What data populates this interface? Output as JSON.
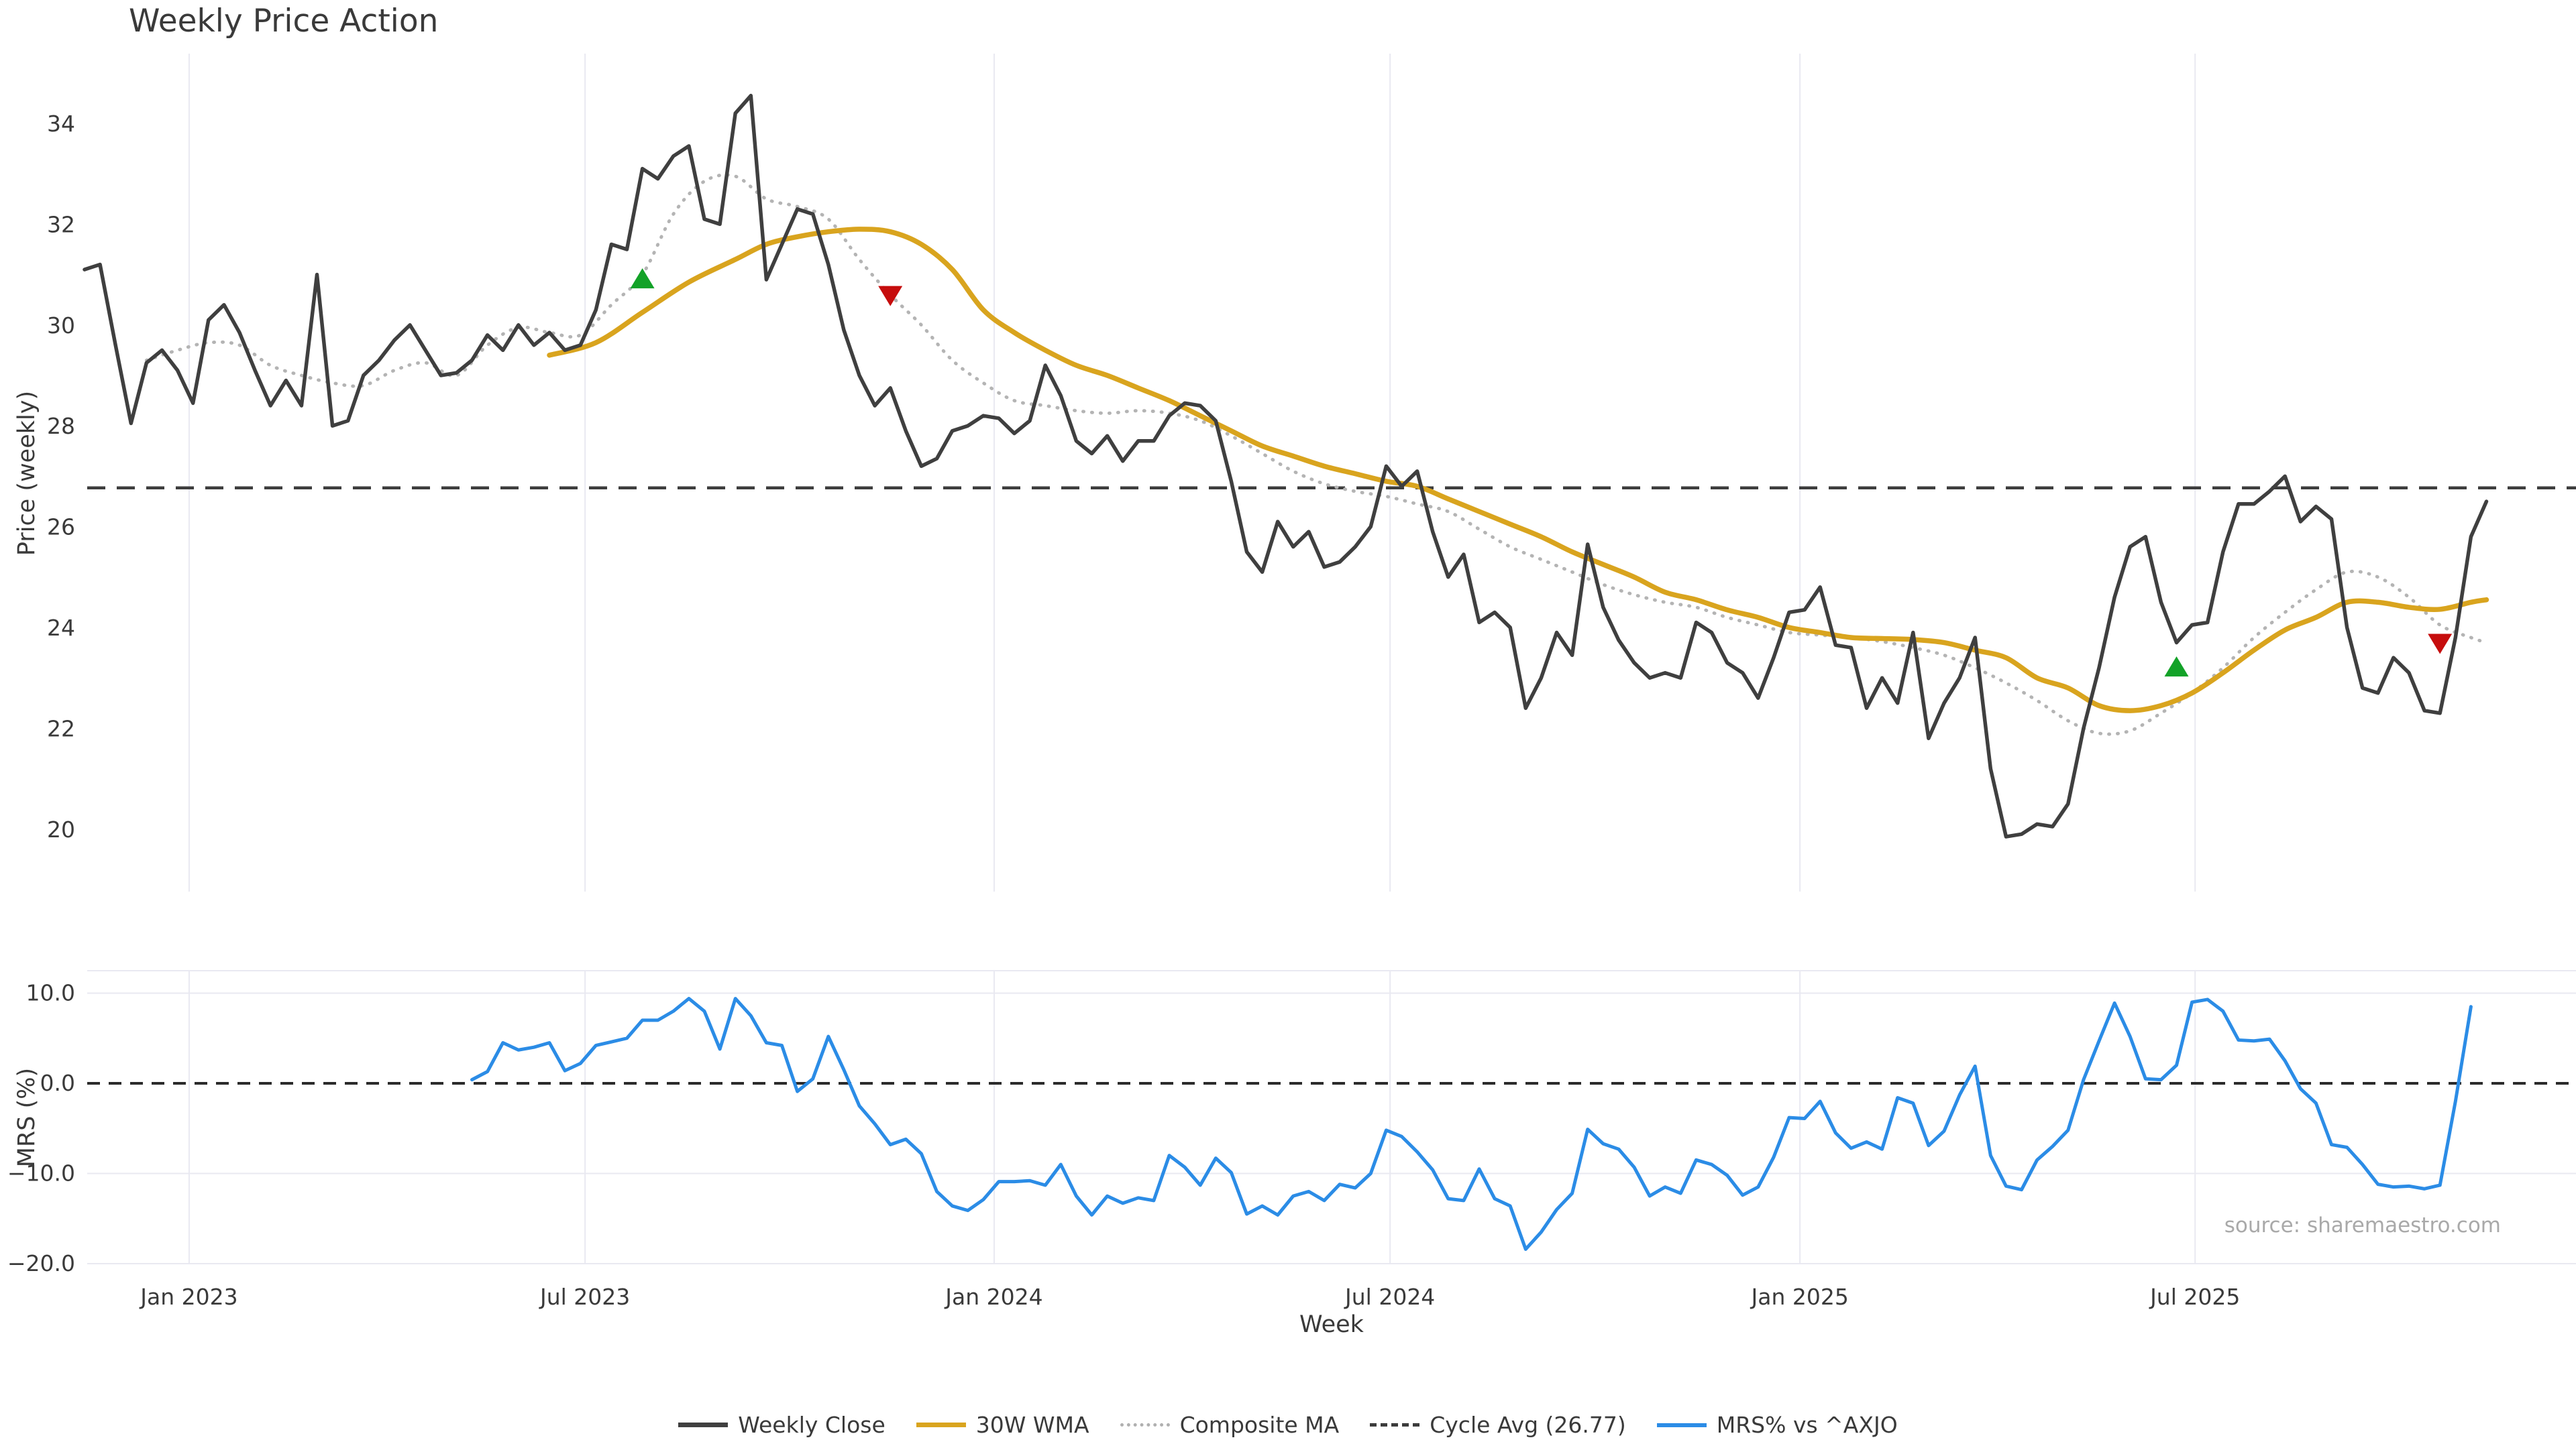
{
  "chart_data": {
    "type": "line",
    "title": "Weekly Price Action",
    "source": "source: sharemaestro.com",
    "xlabel": "Week",
    "x_unit": "week_index_from_2022-11",
    "xticks": [
      {
        "label": "Jan 2023",
        "week": 6.75
      },
      {
        "label": "Jul 2023",
        "week": 32.3
      },
      {
        "label": "Jan 2024",
        "week": 58.7
      },
      {
        "label": "Jul 2024",
        "week": 84.25
      },
      {
        "label": "Jan 2025",
        "week": 110.7
      },
      {
        "label": "Jul 2025",
        "week": 136.2
      }
    ],
    "panels": [
      {
        "name": "price",
        "ylabel": "Price (weekly)",
        "ylim": [
          18.8,
          35.4
        ],
        "grid": "vertical-only",
        "yticks": [
          {
            "v": 34,
            "label": "34"
          },
          {
            "v": 32,
            "label": "32"
          },
          {
            "v": 30,
            "label": "30"
          },
          {
            "v": 28,
            "label": "28"
          },
          {
            "v": 26,
            "label": "26"
          },
          {
            "v": 24,
            "label": "24"
          },
          {
            "v": 22,
            "label": "22"
          },
          {
            "v": 20,
            "label": "20"
          }
        ],
        "cycle_avg": 26.77,
        "weekly_close": {
          "start_week": 0,
          "values": [
            31.1,
            31.2,
            29.6,
            28.05,
            29.25,
            29.5,
            29.1,
            28.45,
            30.1,
            30.4,
            29.85,
            29.1,
            28.4,
            28.9,
            28.4,
            31.0,
            28.0,
            28.1,
            29.0,
            29.3,
            29.7,
            30.0,
            29.5,
            29.0,
            29.05,
            29.3,
            29.8,
            29.5,
            30.0,
            29.6,
            29.85,
            29.5,
            29.6,
            30.3,
            31.6,
            31.5,
            33.1,
            32.9,
            33.35,
            33.55,
            32.1,
            32.0,
            34.2,
            34.55,
            30.9,
            31.6,
            32.3,
            32.2,
            31.2,
            29.9,
            29.0,
            28.4,
            28.75,
            27.9,
            27.2,
            27.35,
            27.9,
            28.0,
            28.2,
            28.15,
            27.85,
            28.1,
            29.2,
            28.6,
            27.7,
            27.45,
            27.8,
            27.3,
            27.7,
            27.7,
            28.2,
            28.45,
            28.4,
            28.1,
            26.9,
            25.5,
            25.1,
            26.1,
            25.6,
            25.9,
            25.2,
            25.3,
            25.6,
            26.0,
            27.2,
            26.8,
            27.1,
            25.9,
            25.0,
            25.45,
            24.1,
            24.3,
            24.0,
            22.4,
            23.0,
            23.9,
            23.45,
            25.65,
            24.4,
            23.75,
            23.3,
            23.0,
            23.1,
            23.0,
            24.1,
            23.9,
            23.3,
            23.1,
            22.6,
            23.4,
            24.3,
            24.35,
            24.8,
            23.65,
            23.6,
            22.4,
            23.0,
            22.5,
            23.9,
            21.8,
            22.5,
            23.0,
            23.8,
            21.2,
            19.85,
            19.9,
            20.1,
            20.05,
            20.5,
            22.0,
            23.2,
            24.6,
            25.6,
            25.8,
            24.5,
            23.7,
            24.05,
            24.1,
            25.5,
            26.45,
            26.45,
            26.7,
            27.0,
            26.1,
            26.4,
            26.15,
            24.0,
            22.8,
            22.7,
            23.4,
            23.1,
            22.35,
            22.3,
            23.8,
            25.8,
            26.5
          ]
        },
        "wma30": {
          "points": [
            [
              30,
              29.4
            ],
            [
              33,
              29.65
            ],
            [
              36,
              30.25
            ],
            [
              39,
              30.85
            ],
            [
              42,
              31.3
            ],
            [
              44,
              31.6
            ],
            [
              46,
              31.75
            ],
            [
              48,
              31.85
            ],
            [
              50,
              31.9
            ],
            [
              52,
              31.85
            ],
            [
              54,
              31.6
            ],
            [
              56,
              31.1
            ],
            [
              58,
              30.3
            ],
            [
              60,
              29.85
            ],
            [
              62,
              29.5
            ],
            [
              64,
              29.2
            ],
            [
              66,
              29.0
            ],
            [
              68,
              28.75
            ],
            [
              70,
              28.5
            ],
            [
              72,
              28.2
            ],
            [
              74,
              27.9
            ],
            [
              76,
              27.6
            ],
            [
              78,
              27.4
            ],
            [
              80,
              27.2
            ],
            [
              82,
              27.05
            ],
            [
              84,
              26.9
            ],
            [
              86,
              26.8
            ],
            [
              88,
              26.55
            ],
            [
              90,
              26.3
            ],
            [
              92,
              26.05
            ],
            [
              94,
              25.8
            ],
            [
              96,
              25.5
            ],
            [
              98,
              25.25
            ],
            [
              100,
              25.0
            ],
            [
              102,
              24.7
            ],
            [
              104,
              24.55
            ],
            [
              106,
              24.35
            ],
            [
              108,
              24.2
            ],
            [
              110,
              24.0
            ],
            [
              112,
              23.9
            ],
            [
              114,
              23.8
            ],
            [
              116,
              23.78
            ],
            [
              118,
              23.76
            ],
            [
              120,
              23.7
            ],
            [
              122,
              23.55
            ],
            [
              124,
              23.4
            ],
            [
              126,
              23.0
            ],
            [
              128,
              22.8
            ],
            [
              130,
              22.45
            ],
            [
              132,
              22.35
            ],
            [
              134,
              22.45
            ],
            [
              136,
              22.7
            ],
            [
              138,
              23.1
            ],
            [
              140,
              23.55
            ],
            [
              142,
              23.95
            ],
            [
              144,
              24.2
            ],
            [
              146,
              24.5
            ],
            [
              148,
              24.5
            ],
            [
              150,
              24.4
            ],
            [
              152,
              24.36
            ],
            [
              154,
              24.5
            ],
            [
              155,
              24.55
            ]
          ]
        },
        "composite_ma": {
          "points": [
            [
              4,
              29.3
            ],
            [
              6,
              29.5
            ],
            [
              8,
              29.65
            ],
            [
              10,
              29.6
            ],
            [
              12,
              29.2
            ],
            [
              14,
              29.0
            ],
            [
              16,
              28.85
            ],
            [
              18,
              28.8
            ],
            [
              20,
              29.1
            ],
            [
              22,
              29.25
            ],
            [
              24,
              29.0
            ],
            [
              26,
              29.6
            ],
            [
              28,
              29.95
            ],
            [
              30,
              29.85
            ],
            [
              32,
              29.8
            ],
            [
              34,
              30.4
            ],
            [
              36,
              31.0
            ],
            [
              38,
              32.2
            ],
            [
              40,
              32.85
            ],
            [
              42,
              32.95
            ],
            [
              44,
              32.5
            ],
            [
              46,
              32.35
            ],
            [
              48,
              32.1
            ],
            [
              50,
              31.3
            ],
            [
              52,
              30.6
            ],
            [
              54,
              30.0
            ],
            [
              56,
              29.3
            ],
            [
              58,
              28.85
            ],
            [
              60,
              28.5
            ],
            [
              62,
              28.4
            ],
            [
              64,
              28.3
            ],
            [
              66,
              28.25
            ],
            [
              68,
              28.3
            ],
            [
              70,
              28.25
            ],
            [
              72,
              28.1
            ],
            [
              74,
              27.8
            ],
            [
              76,
              27.45
            ],
            [
              78,
              27.1
            ],
            [
              80,
              26.85
            ],
            [
              82,
              26.7
            ],
            [
              84,
              26.6
            ],
            [
              86,
              26.45
            ],
            [
              88,
              26.3
            ],
            [
              90,
              25.95
            ],
            [
              92,
              25.6
            ],
            [
              94,
              25.35
            ],
            [
              96,
              25.1
            ],
            [
              98,
              24.85
            ],
            [
              100,
              24.65
            ],
            [
              102,
              24.5
            ],
            [
              104,
              24.4
            ],
            [
              106,
              24.2
            ],
            [
              108,
              24.05
            ],
            [
              110,
              23.9
            ],
            [
              112,
              23.85
            ],
            [
              114,
              23.8
            ],
            [
              116,
              23.72
            ],
            [
              118,
              23.6
            ],
            [
              120,
              23.45
            ],
            [
              122,
              23.2
            ],
            [
              124,
              22.9
            ],
            [
              126,
              22.55
            ],
            [
              128,
              22.15
            ],
            [
              130,
              21.9
            ],
            [
              132,
              21.95
            ],
            [
              134,
              22.3
            ],
            [
              136,
              22.7
            ],
            [
              138,
              23.2
            ],
            [
              140,
              23.8
            ],
            [
              142,
              24.3
            ],
            [
              144,
              24.75
            ],
            [
              146,
              25.1
            ],
            [
              148,
              25.0
            ],
            [
              150,
              24.6
            ],
            [
              152,
              24.05
            ],
            [
              154,
              23.8
            ],
            [
              155,
              23.7
            ]
          ]
        },
        "markers": {
          "buy": [
            {
              "week": 36,
              "price": 30.9
            },
            {
              "week": 135,
              "price": 23.2
            }
          ],
          "sell": [
            {
              "week": 52,
              "price": 30.6
            },
            {
              "week": 152,
              "price": 23.7
            }
          ]
        }
      },
      {
        "name": "mrs",
        "ylabel": "MRS (%)",
        "ylim": [
          -20.1,
          12.5
        ],
        "zero_line": 0.0,
        "yticks": [
          {
            "v": 10,
            "label": "10.0"
          },
          {
            "v": 0,
            "label": "0.0"
          },
          {
            "v": -10,
            "label": "−10.0"
          },
          {
            "v": -20,
            "label": "−20.0"
          }
        ],
        "mrs": {
          "start_week": 25,
          "values": [
            0.4,
            1.3,
            4.5,
            3.7,
            4.0,
            4.5,
            1.4,
            2.2,
            4.2,
            4.6,
            5.0,
            7.0,
            7.0,
            8.0,
            9.4,
            8.0,
            3.8,
            9.4,
            7.5,
            4.5,
            4.2,
            -0.9,
            0.5,
            5.2,
            1.5,
            -2.5,
            -4.5,
            -6.8,
            -6.2,
            -7.8,
            -12.0,
            -13.6,
            -14.1,
            -12.9,
            -10.9,
            -10.9,
            -10.8,
            -11.3,
            -9.0,
            -12.5,
            -14.6,
            -12.5,
            -13.3,
            -12.7,
            -13.0,
            -8.0,
            -9.3,
            -11.3,
            -8.3,
            -9.9,
            -14.5,
            -13.6,
            -14.6,
            -12.5,
            -12.0,
            -13.0,
            -11.2,
            -11.6,
            -10.0,
            -5.2,
            -5.9,
            -7.6,
            -9.6,
            -12.8,
            -13.0,
            -9.5,
            -12.8,
            -13.6,
            -18.4,
            -16.5,
            -14.0,
            -12.2,
            -5.1,
            -6.7,
            -7.3,
            -9.3,
            -12.5,
            -11.5,
            -12.2,
            -8.5,
            -9.0,
            -10.2,
            -12.4,
            -11.5,
            -8.2,
            -3.8,
            -3.9,
            -2.0,
            -5.5,
            -7.2,
            -6.5,
            -7.3,
            -1.6,
            -2.2,
            -6.9,
            -5.3,
            -1.3,
            1.9,
            -8.0,
            -11.4,
            -11.8,
            -8.5,
            -7.0,
            -5.2,
            0.4,
            4.7,
            8.9,
            5.2,
            0.5,
            0.4,
            2.0,
            9.0,
            9.3,
            8.0,
            4.8,
            4.7,
            4.9,
            2.5,
            -0.6,
            -2.2,
            -6.8,
            -7.1,
            -9.0,
            -11.2,
            -11.5,
            -11.4,
            -11.7,
            -11.3,
            -2.0,
            8.5
          ]
        }
      }
    ],
    "legend": [
      {
        "label": "Weekly Close",
        "series": "weekly_close",
        "color": "#3f3f3f",
        "style": "solid"
      },
      {
        "label": "30W WMA",
        "series": "wma30",
        "color": "#d9a41e",
        "style": "solid"
      },
      {
        "label": "Composite MA",
        "series": "composite_ma",
        "color": "#b0b0b0",
        "style": "dotted"
      },
      {
        "label": "Cycle Avg (26.77)",
        "series": "cycle_avg",
        "color": "#3c3c3c",
        "style": "dashed"
      },
      {
        "label": "MRS% vs ^AXJO",
        "series": "mrs",
        "color": "#2b8ce6",
        "style": "solid"
      }
    ],
    "colors": {
      "weekly_close": "#3f3f3f",
      "wma30": "#d9a41e",
      "composite_ma": "#b4b4b4",
      "cycle_avg": "#3d3d3d",
      "mrs": "#2b8ce6",
      "buy_marker": "#13a228",
      "sell_marker": "#c60d0d",
      "grid": "#e9e9f1",
      "tick_text": "#3a3a3a"
    }
  }
}
